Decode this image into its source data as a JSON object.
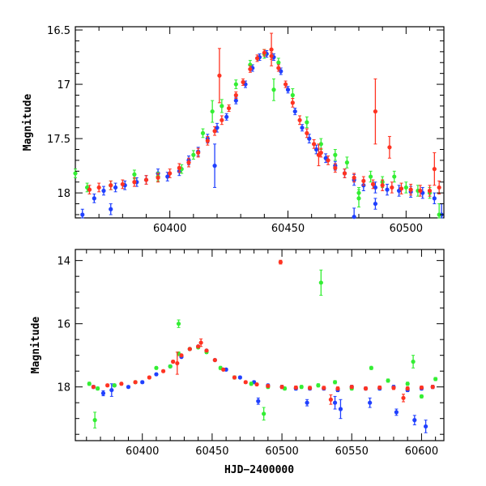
{
  "chart_data": [
    {
      "type": "scatter",
      "title": "",
      "xlabel": "",
      "ylabel": "Magnitude",
      "xlim": [
        60360,
        60516
      ],
      "ylim": [
        18.23,
        16.47
      ],
      "y_inverted": true,
      "x_ticks": [
        60400,
        60450,
        60500
      ],
      "y_ticks": [
        16.5,
        17,
        17.5,
        18
      ],
      "grid": false,
      "legend": "none",
      "series": [
        {
          "color": "#2040ff",
          "x": [
            60363,
            60368,
            60372,
            60377,
            60381,
            60386,
            60390,
            60395,
            60399,
            60404,
            60408,
            60412,
            60416,
            60420,
            60424,
            60428,
            60432,
            60435,
            60438,
            60441,
            60444,
            60447,
            60450,
            60453,
            60456,
            60459,
            60462,
            60466,
            60470,
            60474,
            60478,
            60482,
            60487,
            60492,
            60497,
            60502,
            60507,
            60512,
            60375,
            60419,
            60487,
            60478,
            60515
          ],
          "y": [
            18.2,
            18.05,
            17.98,
            17.95,
            17.93,
            17.9,
            17.88,
            17.82,
            17.85,
            17.8,
            17.7,
            17.62,
            17.5,
            17.4,
            17.3,
            17.15,
            17.0,
            16.85,
            16.75,
            16.72,
            16.75,
            16.88,
            17.05,
            17.25,
            17.4,
            17.5,
            17.6,
            17.68,
            17.75,
            17.82,
            17.88,
            17.93,
            17.95,
            17.97,
            17.98,
            17.99,
            18.0,
            18.05,
            18.15,
            17.75,
            18.1,
            18.22,
            18.2
          ],
          "err": [
            0.05,
            0.04,
            0.04,
            0.04,
            0.04,
            0.04,
            0.04,
            0.04,
            0.04,
            0.04,
            0.04,
            0.04,
            0.04,
            0.04,
            0.03,
            0.03,
            0.03,
            0.03,
            0.03,
            0.03,
            0.03,
            0.03,
            0.03,
            0.03,
            0.03,
            0.04,
            0.04,
            0.04,
            0.04,
            0.04,
            0.05,
            0.05,
            0.05,
            0.05,
            0.05,
            0.05,
            0.05,
            0.05,
            0.05,
            0.2,
            0.05,
            0.08,
            0.1
          ]
        },
        {
          "color": "#33ee33",
          "x": [
            60360,
            60365,
            60375,
            60385,
            60395,
            60405,
            60410,
            60414,
            60418,
            60422,
            60428,
            60434,
            60440,
            60446,
            60452,
            60458,
            60464,
            60470,
            60475,
            60480,
            60485,
            60490,
            60495,
            60500,
            60505,
            60510,
            60444,
            60480,
            60514
          ],
          "y": [
            17.82,
            17.95,
            17.93,
            17.83,
            17.85,
            17.78,
            17.65,
            17.45,
            17.25,
            17.2,
            17.0,
            16.82,
            16.72,
            16.8,
            17.1,
            17.35,
            17.55,
            17.65,
            17.72,
            18.0,
            17.85,
            17.9,
            17.85,
            17.95,
            17.98,
            18.0,
            17.05,
            18.05,
            18.2
          ],
          "err": [
            0.04,
            0.04,
            0.04,
            0.04,
            0.04,
            0.04,
            0.04,
            0.04,
            0.1,
            0.06,
            0.04,
            0.04,
            0.04,
            0.04,
            0.06,
            0.05,
            0.05,
            0.05,
            0.05,
            0.05,
            0.05,
            0.05,
            0.05,
            0.05,
            0.05,
            0.05,
            0.1,
            0.08,
            0.1
          ]
        },
        {
          "color": "#ff3322",
          "x": [
            60366,
            60370,
            60375,
            60380,
            60385,
            60390,
            60395,
            60400,
            60404,
            60408,
            60412,
            60416,
            60419,
            60422,
            60425,
            60428,
            60431,
            60434,
            60437,
            60440,
            60443,
            60446,
            60449,
            60452,
            60455,
            60458,
            60461,
            60464,
            60467,
            60470,
            60474,
            60478,
            60482,
            60486,
            60490,
            60494,
            60498,
            60502,
            60506,
            60510,
            60514,
            60421,
            60443,
            60463,
            60487,
            60493,
            60512
          ],
          "y": [
            17.97,
            17.95,
            17.93,
            17.92,
            17.9,
            17.88,
            17.86,
            17.82,
            17.77,
            17.72,
            17.63,
            17.52,
            17.43,
            17.33,
            17.22,
            17.1,
            16.98,
            16.86,
            16.76,
            16.71,
            16.74,
            16.85,
            17.0,
            17.17,
            17.33,
            17.45,
            17.55,
            17.63,
            17.7,
            17.77,
            17.82,
            17.86,
            17.89,
            17.92,
            17.93,
            17.95,
            17.96,
            17.97,
            17.98,
            17.98,
            17.95,
            16.92,
            16.68,
            17.65,
            17.25,
            17.58,
            17.78
          ],
          "err": [
            0.04,
            0.04,
            0.04,
            0.04,
            0.04,
            0.04,
            0.04,
            0.04,
            0.04,
            0.04,
            0.04,
            0.04,
            0.04,
            0.04,
            0.03,
            0.03,
            0.03,
            0.03,
            0.03,
            0.03,
            0.03,
            0.03,
            0.03,
            0.04,
            0.04,
            0.04,
            0.04,
            0.04,
            0.04,
            0.04,
            0.04,
            0.04,
            0.04,
            0.04,
            0.05,
            0.05,
            0.05,
            0.05,
            0.05,
            0.05,
            0.06,
            0.25,
            0.15,
            0.1,
            0.3,
            0.1,
            0.15
          ]
        }
      ]
    },
    {
      "type": "scatter",
      "title": "",
      "xlabel": "HJD−2400000",
      "ylabel": "Magnitude",
      "xlim": [
        60352,
        60616
      ],
      "ylim": [
        19.7,
        13.65
      ],
      "y_inverted": true,
      "x_ticks": [
        60400,
        60450,
        60500,
        60550,
        60600
      ],
      "y_ticks": [
        14,
        16,
        18
      ],
      "grid": false,
      "legend": "none",
      "series": [
        {
          "color": "#2040ff",
          "x": [
            60365,
            60372,
            60380,
            60390,
            60400,
            60410,
            60420,
            60428,
            60434,
            60440,
            60446,
            60452,
            60460,
            60470,
            60480,
            60490,
            60500,
            60510,
            60520,
            60530,
            60540,
            60550,
            60560,
            60570,
            60580,
            60590,
            60600,
            60608,
            60378,
            60483,
            60518,
            60538,
            60542,
            60563,
            60582,
            60595,
            60603
          ],
          "y": [
            18.0,
            18.2,
            17.95,
            18.0,
            17.85,
            17.6,
            17.35,
            17.05,
            16.8,
            16.72,
            16.85,
            17.15,
            17.45,
            17.7,
            17.85,
            17.95,
            18.0,
            18.05,
            18.05,
            18.05,
            18.1,
            18.0,
            18.05,
            18.05,
            18.0,
            18.1,
            18.05,
            18.0,
            18.1,
            18.45,
            18.5,
            18.5,
            18.7,
            18.5,
            18.8,
            19.05,
            19.25
          ],
          "err": [
            0.05,
            0.08,
            0.04,
            0.04,
            0.04,
            0.04,
            0.04,
            0.03,
            0.03,
            0.03,
            0.03,
            0.03,
            0.04,
            0.04,
            0.04,
            0.04,
            0.05,
            0.05,
            0.05,
            0.05,
            0.05,
            0.05,
            0.05,
            0.05,
            0.05,
            0.05,
            0.05,
            0.05,
            0.2,
            0.1,
            0.1,
            0.2,
            0.3,
            0.15,
            0.1,
            0.15,
            0.2
          ]
        },
        {
          "color": "#33ee33",
          "x": [
            60362,
            60368,
            60380,
            60395,
            60410,
            60420,
            60426,
            60434,
            60440,
            60446,
            60456,
            60466,
            60478,
            60490,
            60502,
            60514,
            60526,
            60538,
            60550,
            60564,
            60576,
            60590,
            60600,
            60610,
            60366,
            60426,
            60487,
            60528,
            60594
          ],
          "y": [
            17.9,
            18.05,
            17.95,
            17.85,
            17.4,
            17.35,
            16.95,
            16.8,
            16.75,
            16.9,
            17.4,
            17.7,
            17.9,
            18.0,
            18.05,
            18.0,
            17.95,
            17.85,
            18.05,
            17.4,
            17.8,
            17.9,
            18.3,
            17.75,
            19.05,
            16.0,
            18.85,
            14.7,
            17.2
          ],
          "err": [
            0.05,
            0.05,
            0.04,
            0.04,
            0.04,
            0.04,
            0.06,
            0.04,
            0.04,
            0.04,
            0.05,
            0.05,
            0.05,
            0.05,
            0.05,
            0.05,
            0.05,
            0.05,
            0.05,
            0.05,
            0.05,
            0.05,
            0.05,
            0.05,
            0.25,
            0.12,
            0.2,
            0.4,
            0.2
          ]
        },
        {
          "color": "#ff3322",
          "x": [
            60365,
            60375,
            60385,
            60395,
            60405,
            60415,
            60422,
            60428,
            60434,
            60440,
            60446,
            60452,
            60458,
            60466,
            60474,
            60482,
            60490,
            60500,
            60510,
            60520,
            60530,
            60540,
            60550,
            60560,
            60570,
            60580,
            60590,
            60600,
            60608,
            60425,
            60442,
            60499,
            60535,
            60587
          ],
          "y": [
            18.0,
            17.95,
            17.9,
            17.85,
            17.7,
            17.5,
            17.2,
            17.0,
            16.8,
            16.72,
            16.85,
            17.15,
            17.45,
            17.7,
            17.85,
            17.92,
            17.97,
            18.0,
            18.02,
            18.03,
            18.03,
            18.05,
            18.0,
            18.05,
            18.02,
            18.03,
            18.05,
            18.02,
            18.0,
            17.25,
            16.6,
            14.05,
            18.4,
            18.35
          ],
          "err": [
            0.04,
            0.04,
            0.04,
            0.04,
            0.04,
            0.04,
            0.04,
            0.03,
            0.03,
            0.03,
            0.03,
            0.03,
            0.03,
            0.04,
            0.04,
            0.04,
            0.04,
            0.05,
            0.05,
            0.05,
            0.05,
            0.05,
            0.05,
            0.05,
            0.05,
            0.05,
            0.05,
            0.05,
            0.05,
            0.35,
            0.12,
            0.06,
            0.15,
            0.12
          ]
        }
      ]
    }
  ]
}
